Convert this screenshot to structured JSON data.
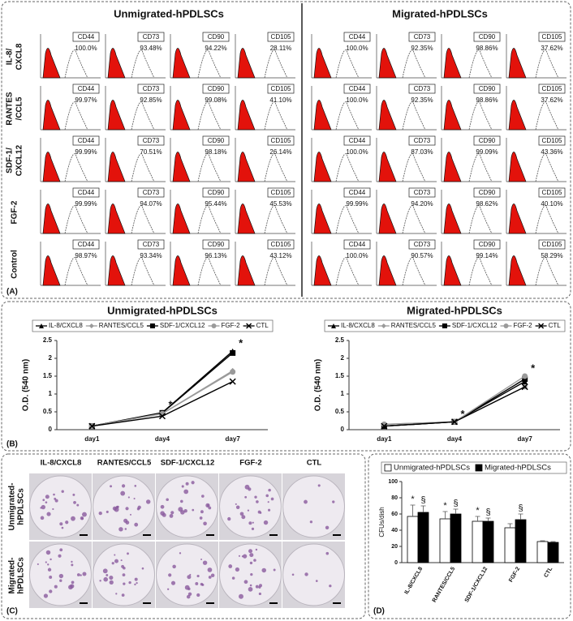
{
  "panel_a": {
    "label": "(A)",
    "markers": [
      "CD44",
      "CD73",
      "CD90",
      "CD105"
    ],
    "row_labels": [
      [
        "IL-8/",
        "CXCL8"
      ],
      [
        "RANTES",
        "/CCL5"
      ],
      [
        "SDF-1/",
        "CXCL12"
      ],
      [
        "FGF-2"
      ],
      [
        "Control"
      ]
    ],
    "groups": [
      {
        "title": "Unmigrated-hPDLSCs",
        "rows": [
          [
            "100.0%",
            "93.48%",
            "94.22%",
            "28.11%"
          ],
          [
            "99.97%",
            "92.85%",
            "99.08%",
            "41.10%"
          ],
          [
            "99.99%",
            "70.51%",
            "98.18%",
            "26.14%"
          ],
          [
            "99.99%",
            "94.07%",
            "95.44%",
            "45.53%"
          ],
          [
            "98.97%",
            "93.34%",
            "96.13%",
            "43.12%"
          ]
        ]
      },
      {
        "title": "Migrated-hPDLSCs",
        "rows": [
          [
            "100.0%",
            "92.35%",
            "98.86%",
            "37.62%"
          ],
          [
            "100.0%",
            "92.35%",
            "98.86%",
            "37.62%"
          ],
          [
            "100.0%",
            "87.03%",
            "99.09%",
            "43.36%"
          ],
          [
            "99.99%",
            "94.20%",
            "98.62%",
            "40.10%"
          ],
          [
            "100.0%",
            "90.57%",
            "99.14%",
            "58.29%"
          ]
        ]
      }
    ]
  },
  "panel_b_label": "(B)",
  "chart_data": [
    {
      "type": "line",
      "title": "Unmigrated-hPDLSCs",
      "y_label": "O.D. (540 nm)",
      "categories": [
        "day1",
        "day4",
        "day7"
      ],
      "ylim": [
        0,
        2.5
      ],
      "yticks": [
        0,
        0.5,
        1,
        1.5,
        2,
        2.5
      ],
      "marks": [
        null,
        "*",
        "*"
      ],
      "series": [
        {
          "name": "IL-8/CXCL8",
          "color": "#000000",
          "marker": "triangle",
          "values": [
            0.1,
            0.48,
            2.2
          ]
        },
        {
          "name": "RANTES/CCL5",
          "color": "#9a9a9a",
          "marker": "diamond",
          "values": [
            0.1,
            0.45,
            1.65
          ]
        },
        {
          "name": "SDF-1/CXCL12",
          "color": "#000000",
          "marker": "square",
          "values": [
            0.1,
            0.47,
            2.15
          ]
        },
        {
          "name": "FGF-2",
          "color": "#9a9a9a",
          "marker": "circle",
          "values": [
            0.1,
            0.45,
            1.62
          ]
        },
        {
          "name": "CTL",
          "color": "#000000",
          "marker": "cross",
          "values": [
            0.1,
            0.38,
            1.35
          ]
        }
      ]
    },
    {
      "type": "line",
      "title": "Migrated-hPDLSCs",
      "y_label": "O.D. (540 nm)",
      "categories": [
        "day1",
        "day4",
        "day7"
      ],
      "ylim": [
        0,
        2.5
      ],
      "yticks": [
        0,
        0.5,
        1,
        1.5,
        2,
        2.5
      ],
      "marks": [
        null,
        "*",
        "*"
      ],
      "series": [
        {
          "name": "IL-8/CXCL8",
          "color": "#000000",
          "marker": "triangle",
          "values": [
            0.1,
            0.22,
            1.35
          ]
        },
        {
          "name": "RANTES/CCL5",
          "color": "#9a9a9a",
          "marker": "diamond",
          "values": [
            0.15,
            0.22,
            1.2
          ]
        },
        {
          "name": "SDF-1/CXCL12",
          "color": "#000000",
          "marker": "square",
          "values": [
            0.1,
            0.22,
            1.42
          ]
        },
        {
          "name": "FGF-2",
          "color": "#9a9a9a",
          "marker": "circle",
          "values": [
            0.15,
            0.22,
            1.5
          ]
        },
        {
          "name": "CTL",
          "color": "#000000",
          "marker": "cross",
          "values": [
            0.1,
            0.22,
            1.2
          ]
        }
      ]
    },
    {
      "type": "bar",
      "label": "(D)",
      "y_label": "CFUs/dish",
      "categories": [
        "IL-8/CXCL8",
        "RANTES/CCL5",
        "SDF-1/CXCL12",
        "FGF-2",
        "CTL"
      ],
      "ylim": [
        0,
        100
      ],
      "yticks": [
        0,
        20,
        40,
        60,
        80,
        100
      ],
      "series": [
        {
          "name": "Unmigrated-hPDLSCs",
          "color": "#ffffff",
          "values": [
            57,
            54,
            51,
            43,
            26
          ],
          "errors": [
            14,
            9,
            6,
            5,
            1
          ],
          "marks": [
            "*",
            "*",
            "*",
            null,
            null
          ]
        },
        {
          "name": "Migrated-hPDLSCs",
          "color": "#000000",
          "values": [
            62,
            60,
            51,
            53,
            25
          ],
          "errors": [
            8,
            6,
            4,
            7,
            1
          ],
          "marks": [
            "§",
            "§",
            "§",
            "§",
            null
          ]
        }
      ]
    }
  ],
  "panel_c": {
    "label": "(C)",
    "columns": [
      "IL-8/CXCL8",
      "RANTES/CCL5",
      "SDF-1/CXCL12",
      "FGF-2",
      "CTL"
    ],
    "rows": [
      [
        "Unmigrated-",
        "hPDLSCs"
      ],
      [
        "Migrated-",
        "hPDLSCs"
      ]
    ]
  }
}
